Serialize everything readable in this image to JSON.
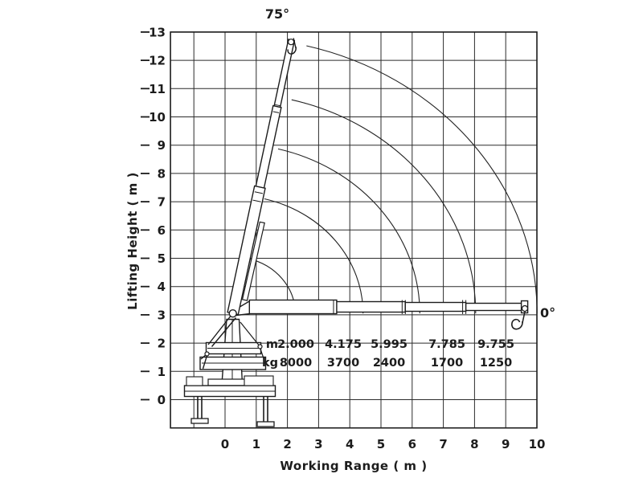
{
  "figure": {
    "ylabel": "Lifting Height ( m )",
    "xlabel": "Working Range ( m )",
    "angle_label_max": "75°",
    "angle_label_min": "0°",
    "table": {
      "row_m_label": "m",
      "row_kg_label": "kg",
      "m_values": [
        "2.000",
        "4.175",
        "5.995",
        "7.785",
        "9.755"
      ],
      "kg_values": [
        "8000",
        "3700",
        "2400",
        "1700",
        "1250"
      ]
    }
  },
  "chart_data": {
    "type": "line",
    "title": "",
    "xlabel": "Working Range ( m )",
    "ylabel": "Lifting Height ( m )",
    "xlim": [
      -1.75,
      10
    ],
    "ylim": [
      -1,
      13
    ],
    "x_ticks": [
      0,
      1,
      2,
      3,
      4,
      5,
      6,
      7,
      8,
      9,
      10
    ],
    "y_ticks": [
      0,
      1,
      2,
      3,
      4,
      5,
      6,
      7,
      8,
      9,
      10,
      11,
      12,
      13
    ],
    "grid": true,
    "legend": false,
    "boom_angle_deg": {
      "min": 0,
      "max": 75
    },
    "boom_pivot": {
      "x": 0.25,
      "y": 3.05
    },
    "extensions": [
      {
        "outreach_m": 2.0,
        "capacity_kg": 8000
      },
      {
        "outreach_m": 4.175,
        "capacity_kg": 3700
      },
      {
        "outreach_m": 5.995,
        "capacity_kg": 2400
      },
      {
        "outreach_m": 7.785,
        "capacity_kg": 1700
      },
      {
        "outreach_m": 9.755,
        "capacity_kg": 1250
      }
    ]
  }
}
